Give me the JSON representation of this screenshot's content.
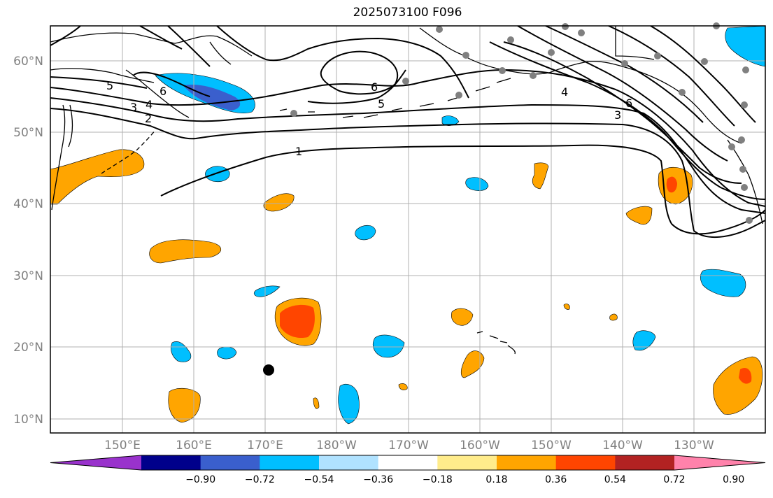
{
  "title": "2025073100 F096",
  "lat_labels": [
    "10°N",
    "20°N",
    "30°N",
    "40°N",
    "50°N",
    "60°N"
  ],
  "lon_labels": [
    "150°E",
    "160°E",
    "170°E",
    "180°W",
    "170°W",
    "160°W",
    "150°W",
    "140°W",
    "130°W"
  ],
  "colorbar": {
    "ticks": [
      "−0.90",
      "−0.72",
      "−0.54",
      "−0.36",
      "−0.18",
      "0.18",
      "0.36",
      "0.54",
      "0.72",
      "0.90"
    ],
    "colors": [
      "#9932cc",
      "#00008b",
      "#3a5fcd",
      "#00bfff",
      "#b0e2ff",
      "#ffffff",
      "#ffec8b",
      "#ffa500",
      "#ff4500",
      "#b22222",
      "#ff82ab"
    ]
  },
  "contour_labels": [
    "1",
    "2",
    "3",
    "4",
    "5",
    "6"
  ],
  "colors": {
    "contour": "#000000",
    "grid": "#b0b0b0",
    "coast": "#000000",
    "station": "#808080"
  },
  "markers": {
    "station_dot": "gray-dot",
    "typhoon_dot": "black-dot"
  }
}
